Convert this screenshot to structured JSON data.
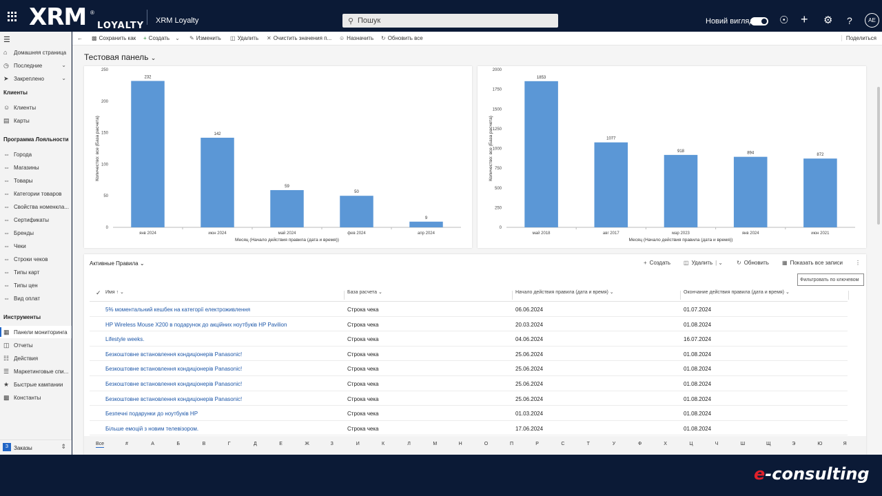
{
  "header": {
    "brand": "XRM",
    "brand_reg": "®",
    "brand_sub": "LOYALTY",
    "app_name": "XRM Loyalty",
    "search_placeholder": "Пошук",
    "new_look_label": "Новий вигляд",
    "avatar_initials": "AE"
  },
  "sidebar": {
    "top_items": [
      {
        "label": "Домашняя страница",
        "icon": "home-icon"
      },
      {
        "label": "Последние",
        "icon": "clock-icon",
        "chevron": true
      },
      {
        "label": "Закреплено",
        "icon": "pin-icon",
        "chevron": true
      }
    ],
    "groups": [
      {
        "title": "Клиенты",
        "items": [
          "Клиенты",
          "Карты"
        ]
      },
      {
        "title": "Программа Лояльности",
        "items": [
          "Города",
          "Магазины",
          "Товары",
          "Категории товаров",
          "Свойства номенкла...",
          "Сертификаты",
          "Бренды",
          "Чеки",
          "Строки чеков",
          "Типы карт",
          "Типы цен",
          "Вид оплат"
        ]
      },
      {
        "title": "Инструменты",
        "items": [
          "Панели мониторинга",
          "Отчеты",
          "Действия",
          "Маркетинговые спи...",
          "Быстрые кампании",
          "Константы"
        ]
      }
    ],
    "active_item": "Панели мониторинга",
    "area_badge": "З",
    "area_label": "Заказы"
  },
  "commands": {
    "back": "←",
    "save_as": "Сохранить как",
    "create": "Создать",
    "edit": "Изменить",
    "delete": "Удалить",
    "clear": "Очистить значения п...",
    "assign": "Назначить",
    "refresh_all": "Обновить все",
    "share": "Поделиться"
  },
  "dashboard_title": "Тестовая панель",
  "chart_data": [
    {
      "type": "bar",
      "categories": [
        "янв 2024",
        "июн 2024",
        "май 2024",
        "фев 2024",
        "апр 2024"
      ],
      "values": [
        232,
        142,
        59,
        50,
        9
      ],
      "xlabel": "Месяц (Начало действия правила (дата и время))",
      "ylabel": "Количество: все (База расчета)",
      "ylim": [
        0,
        250
      ],
      "yticks": [
        0,
        50,
        100,
        150,
        200,
        250
      ],
      "color": "#5b97d6",
      "grid": false
    },
    {
      "type": "bar",
      "categories": [
        "май 2018",
        "авг 2017",
        "мар 2023",
        "янв 2024",
        "июн 2021"
      ],
      "values": [
        1853,
        1077,
        918,
        894,
        872
      ],
      "xlabel": "Месяц (Начало действия правила (дата и время))",
      "ylabel": "Количество: все (База расчета)",
      "ylim": [
        0,
        2000
      ],
      "yticks": [
        0,
        250,
        500,
        750,
        1000,
        1250,
        1500,
        1750,
        2000
      ],
      "color": "#5b97d6",
      "grid": false
    }
  ],
  "grid": {
    "title": "Активные Правила",
    "create": "Создать",
    "delete": "Удалить",
    "refresh": "Обновить",
    "show_all": "Показать все записи",
    "filter_placeholder": "Фильтровать по ключевом",
    "columns": [
      "Имя ↑",
      "База расчета",
      "Начало действия правила (дата и время)",
      "Окончание действия правила (дата и время)"
    ],
    "rows": [
      [
        "5% моментальний кешбек на категорії електроживлення",
        "Строка чека",
        "06.06.2024",
        "01.07.2024"
      ],
      [
        "HP Wireless Mouse X200 в подарунок до акційних ноутбуків HP Pavilion",
        "Строка чека",
        "20.03.2024",
        "01.08.2024"
      ],
      [
        "Lifestyle weeks.",
        "Строка чека",
        "04.06.2024",
        "16.07.2024"
      ],
      [
        "Безкоштовне встановлення кондиціонерів Panasonic!",
        "Строка чека",
        "25.06.2024",
        "01.08.2024"
      ],
      [
        "Безкоштовне встановлення кондиціонерів Panasonic!",
        "Строка чека",
        "25.06.2024",
        "01.08.2024"
      ],
      [
        "Безкоштовне встановлення кондиціонерів Panasonic!",
        "Строка чека",
        "25.06.2024",
        "01.08.2024"
      ],
      [
        "Безкоштовне встановлення кондиціонерів Panasonic!",
        "Строка чека",
        "25.06.2024",
        "01.08.2024"
      ],
      [
        "Безпечні подарунки до ноутбуків HP",
        "Строка чека",
        "01.03.2024",
        "01.08.2024"
      ],
      [
        "Більше емоцій з новим телевізором.",
        "Строка чека",
        "17.06.2024",
        "01.08.2024"
      ]
    ],
    "alphabet": [
      "Все",
      "#",
      "А",
      "Б",
      "В",
      "Г",
      "Д",
      "Е",
      "Ж",
      "З",
      "И",
      "К",
      "Л",
      "М",
      "Н",
      "О",
      "П",
      "Р",
      "С",
      "Т",
      "У",
      "Ф",
      "Х",
      "Ц",
      "Ч",
      "Ш",
      "Щ",
      "Э",
      "Ю",
      "Я"
    ]
  },
  "footer_logo": {
    "prefix": "e",
    "rest": "-consulting"
  }
}
